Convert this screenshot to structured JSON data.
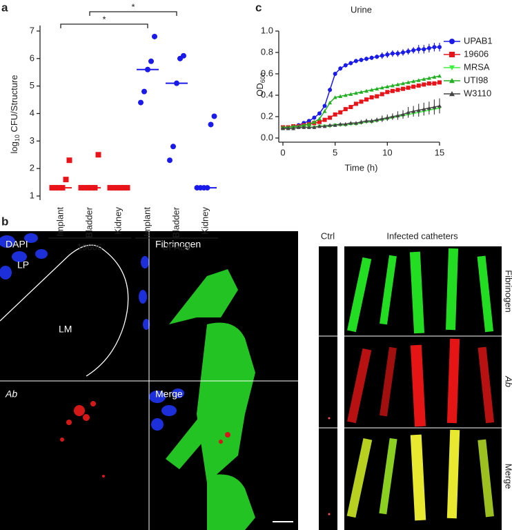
{
  "chart_data": [
    {
      "type": "strip",
      "ylabel": "log",
      "ylabel_sub": "10",
      "ylabel_rest": " CFU/Structure",
      "categories": [
        "Implant",
        "Bladder",
        "Kidney"
      ],
      "ylim": [
        0.85,
        7.1
      ],
      "yticks": [
        1,
        2,
        3,
        4,
        5,
        6,
        7
      ],
      "annotations": [
        "*",
        "*"
      ],
      "series": [
        {
          "name": "19606",
          "color": "#e8141a",
          "marker": "square",
          "values": [
            [
              1.3,
              1.3,
              1.3,
              1.3,
              1.6,
              2.3
            ],
            [
              1.3,
              1.3,
              1.3,
              1.3,
              1.3,
              2.5
            ],
            [
              1.3,
              1.3,
              1.3,
              1.3,
              1.3,
              1.3
            ]
          ],
          "medians": [
            1.3,
            1.3,
            1.3
          ]
        },
        {
          "name": "UPAB1",
          "color": "#1a1aeb",
          "marker": "circle",
          "values": [
            [
              4.4,
              4.8,
              5.6,
              5.9,
              6.8
            ],
            [
              2.3,
              2.8,
              5.1,
              6.0,
              6.1
            ],
            [
              1.3,
              1.3,
              1.3,
              1.3,
              3.6,
              3.9
            ]
          ],
          "medians": [
            5.6,
            5.1,
            1.3
          ]
        }
      ]
    },
    {
      "type": "line",
      "title": "Urine",
      "xlabel": "Time (h)",
      "ylabel": "OD",
      "ylabel_sub": "600",
      "xlim": [
        0,
        15
      ],
      "xticks": [
        0,
        5,
        10,
        15
      ],
      "ylim": [
        0,
        1
      ],
      "yticks": [
        {
          "value": 0,
          "label": "0.0"
        },
        0.2,
        0.4,
        0.6,
        0.8,
        {
          "value": 1,
          "label": "1.0"
        }
      ],
      "x": [
        0,
        0.5,
        1,
        1.5,
        2,
        2.5,
        3,
        3.5,
        4,
        4.5,
        5,
        5.5,
        6,
        6.5,
        7,
        7.5,
        8,
        8.5,
        9,
        9.5,
        10,
        10.5,
        11,
        11.5,
        12,
        12.5,
        13,
        13.5,
        14,
        14.5,
        15
      ],
      "series": [
        {
          "name": "UPAB1",
          "color": "#1a1aeb",
          "marker": "circle",
          "values": [
            0.1,
            0.1,
            0.11,
            0.12,
            0.14,
            0.16,
            0.19,
            0.23,
            0.3,
            0.45,
            0.6,
            0.65,
            0.68,
            0.7,
            0.72,
            0.73,
            0.74,
            0.75,
            0.76,
            0.77,
            0.78,
            0.79,
            0.79,
            0.8,
            0.81,
            0.82,
            0.83,
            0.83,
            0.84,
            0.85,
            0.85
          ],
          "errors": [
            0.01,
            0.01,
            0.01,
            0.01,
            0.01,
            0.01,
            0.01,
            0.01,
            0.01,
            0.02,
            0.02,
            0.02,
            0.02,
            0.02,
            0.02,
            0.02,
            0.02,
            0.02,
            0.02,
            0.03,
            0.03,
            0.03,
            0.03,
            0.03,
            0.03,
            0.03,
            0.04,
            0.04,
            0.04,
            0.04,
            0.04
          ]
        },
        {
          "name": "19606",
          "color": "#e8141a",
          "marker": "square",
          "values": [
            0.1,
            0.1,
            0.11,
            0.11,
            0.12,
            0.13,
            0.14,
            0.15,
            0.17,
            0.19,
            0.22,
            0.24,
            0.27,
            0.29,
            0.32,
            0.34,
            0.36,
            0.38,
            0.39,
            0.41,
            0.43,
            0.44,
            0.45,
            0.46,
            0.47,
            0.48,
            0.49,
            0.5,
            0.51,
            0.51,
            0.52
          ]
        },
        {
          "name": "MRSA",
          "color": "#3ef03e",
          "marker": "triangle-down",
          "values": [
            0.09,
            0.09,
            0.09,
            0.1,
            0.1,
            0.1,
            0.1,
            0.11,
            0.11,
            0.11,
            0.12,
            0.12,
            0.12,
            0.13,
            0.13,
            0.14,
            0.15,
            0.15,
            0.16,
            0.17,
            0.18,
            0.19,
            0.2,
            0.21,
            0.22,
            0.23,
            0.24,
            0.25,
            0.26,
            0.27,
            0.28
          ]
        },
        {
          "name": "UTI98",
          "color": "#22b022",
          "marker": "triangle",
          "values": [
            0.1,
            0.1,
            0.11,
            0.11,
            0.12,
            0.13,
            0.15,
            0.18,
            0.25,
            0.33,
            0.38,
            0.39,
            0.4,
            0.41,
            0.42,
            0.43,
            0.44,
            0.45,
            0.46,
            0.47,
            0.48,
            0.49,
            0.5,
            0.51,
            0.52,
            0.53,
            0.54,
            0.55,
            0.56,
            0.57,
            0.58
          ]
        },
        {
          "name": "W3110",
          "color": "#444444",
          "marker": "triangle",
          "values": [
            0.09,
            0.09,
            0.09,
            0.1,
            0.1,
            0.1,
            0.1,
            0.11,
            0.11,
            0.12,
            0.12,
            0.13,
            0.13,
            0.14,
            0.14,
            0.15,
            0.16,
            0.16,
            0.17,
            0.18,
            0.19,
            0.2,
            0.21,
            0.22,
            0.24,
            0.25,
            0.26,
            0.27,
            0.28,
            0.29,
            0.3
          ],
          "errors": [
            0.01,
            0.01,
            0.01,
            0.01,
            0.01,
            0.01,
            0.01,
            0.01,
            0.01,
            0.01,
            0.01,
            0.01,
            0.01,
            0.01,
            0.01,
            0.02,
            0.02,
            0.02,
            0.02,
            0.03,
            0.03,
            0.03,
            0.04,
            0.04,
            0.05,
            0.05,
            0.06,
            0.06,
            0.06,
            0.07,
            0.07
          ]
        }
      ]
    }
  ],
  "panel_labels": [
    "a",
    "b",
    "c"
  ],
  "micrographs": {
    "tissue": [
      "DAPI",
      "Fibrinogen",
      "Ab",
      "Merge"
    ],
    "regions": [
      "LP",
      "LM"
    ],
    "ctrl": "Ctrl",
    "infected": "Infected catheters",
    "rows": [
      "Fibrinogen",
      "Ab",
      "Merge"
    ]
  }
}
